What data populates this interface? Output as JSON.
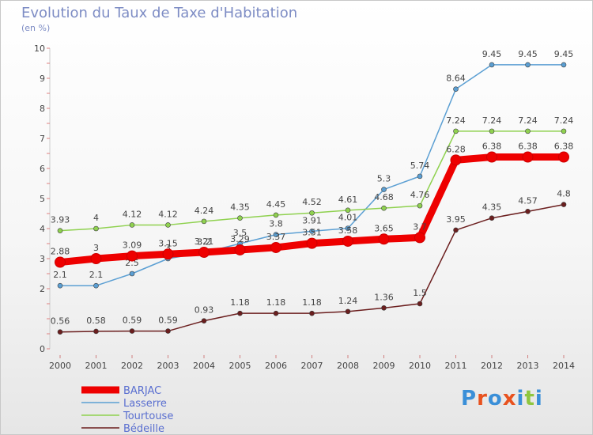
{
  "title": "Evolution du Taux de Taxe d'Habitation",
  "subtitle": "(en %)",
  "logo": {
    "text": "Proxiti",
    "colors": [
      "#3a8fd8",
      "#e8521f",
      "#3a8fd8",
      "#e8521f",
      "#3a8fd8",
      "#8fc63f",
      "#3a8fd8"
    ]
  },
  "chart_data": {
    "type": "line",
    "title": "Evolution du Taux de Taxe d'Habitation",
    "ylabel": "(en %)",
    "xlabel": "",
    "ylim": [
      0,
      10
    ],
    "yticks": [
      0,
      2,
      3,
      4,
      5,
      6,
      7,
      8,
      9,
      10
    ],
    "grid": false,
    "legend_position": "bottom-left",
    "x": [
      "2000",
      "2001",
      "2002",
      "2003",
      "2004",
      "2005",
      "2006",
      "2007",
      "2008",
      "2009",
      "2010",
      "2011",
      "2012",
      "2013",
      "2014"
    ],
    "series": [
      {
        "name": "Bédeille",
        "color": "#6b1e1e",
        "values": [
          0.56,
          0.58,
          0.59,
          0.59,
          0.93,
          1.18,
          1.18,
          1.18,
          1.24,
          1.36,
          1.5,
          3.95,
          4.35,
          4.57,
          4.8
        ],
        "labels": [
          "0.56",
          "0.58",
          "0.59",
          "0.59",
          "0.93",
          "1.18",
          "1.18",
          "1.18",
          "1.24",
          "1.36",
          "1.5",
          "3.95",
          "4.35",
          "4.57",
          "4.8"
        ]
      },
      {
        "name": "Lasserre",
        "color": "#5b9fd3",
        "values": [
          2.1,
          2.1,
          2.5,
          3.0,
          3.2,
          3.5,
          3.8,
          3.91,
          4.01,
          5.3,
          5.74,
          8.64,
          9.45,
          9.45,
          9.45
        ],
        "labels": [
          "2.1",
          "2.1",
          "2.5",
          "3",
          "3.2",
          "3.5",
          "3.8",
          "3.91",
          "4.01",
          "5.3",
          "5.74",
          "8.64",
          "9.45",
          "9.45",
          "9.45"
        ]
      },
      {
        "name": "Tourtouse",
        "color": "#8fd14f",
        "values": [
          3.93,
          4.0,
          4.12,
          4.12,
          4.24,
          4.35,
          4.45,
          4.52,
          4.61,
          4.68,
          4.76,
          7.24,
          7.24,
          7.24,
          7.24
        ],
        "labels": [
          "3.93",
          "4",
          "4.12",
          "4.12",
          "4.24",
          "4.35",
          "4.45",
          "4.52",
          "4.61",
          "4.68",
          "4.76",
          "7.24",
          "7.24",
          "7.24",
          "7.24"
        ]
      },
      {
        "name": "BARJAC",
        "color": "#ee0000",
        "values": [
          2.88,
          3.0,
          3.09,
          3.15,
          3.21,
          3.29,
          3.37,
          3.51,
          3.58,
          3.65,
          3.7,
          6.28,
          6.38,
          6.38,
          6.38
        ],
        "labels": [
          "2.88",
          "3",
          "3.09",
          "3.15",
          "3.21",
          "3.29",
          "3.37",
          "3.51",
          "3.58",
          "3.65",
          "3.7",
          "6.28",
          "6.38",
          "6.38",
          "6.38"
        ]
      }
    ],
    "legend": [
      "BARJAC",
      "Lasserre",
      "Tourtouse",
      "Bédeille"
    ]
  }
}
